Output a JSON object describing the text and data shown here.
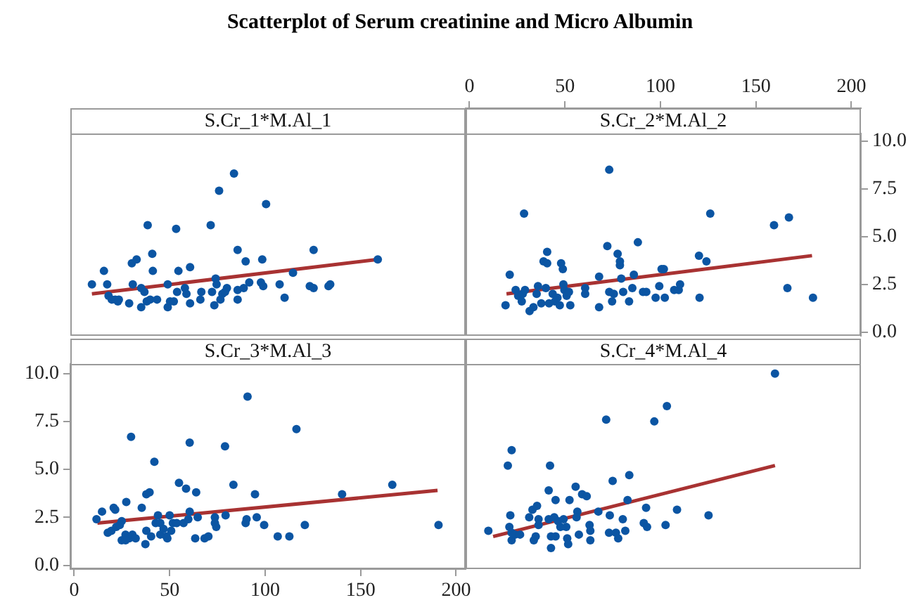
{
  "chart_data": [
    {
      "type": "scatter",
      "title": "Scatterplot of Serum creatinine and Micro Albumin",
      "subtitle": "S.Cr_1*M.Al_1",
      "xlim": [
        -2,
        205
      ],
      "ylim": [
        -0.2,
        10.4
      ],
      "tick_labels": false,
      "series": [
        {
          "color": "#0b55a3",
          "marker": "circle",
          "x": [
            9.3,
            15.6,
            17.3,
            18,
            19.7,
            21.5,
            22.9,
            23.4,
            28.8,
            30.2,
            32.7,
            30.7,
            35.1,
            35.1,
            36.8,
            38.5,
            38,
            39.8,
            40.9,
            41.2,
            43.4,
            49,
            49,
            50.2,
            52.2,
            53.4,
            54.6,
            53.9,
            58,
            58.8,
            60.7,
            60.7,
            66.1,
            66.6,
            71.5,
            72.2,
            73.4,
            74.1,
            74.6,
            75.9,
            76.6,
            77.6,
            79,
            80,
            83.7,
            85.6,
            85.6,
            85.6,
            88.8,
            89.8,
            91.7,
            97.8,
            98.5,
            99,
            100.5,
            107.6,
            110.2,
            114.6,
            123.4,
            125.4,
            125.4,
            133.2,
            134.1,
            159
          ],
          "values": [
            2.5,
            3.2,
            2.5,
            1.9,
            1.7,
            1.7,
            1.6,
            1.7,
            1.5,
            3.6,
            3.8,
            2.5,
            1.3,
            2.3,
            2.1,
            5.6,
            1.6,
            1.7,
            4.1,
            3.2,
            1.7,
            2.5,
            1.3,
            1.6,
            1.6,
            5.4,
            3.2,
            2.1,
            2.3,
            2,
            3.4,
            1.5,
            1.7,
            2.1,
            5.6,
            2.1,
            1.4,
            2.8,
            2.5,
            7.4,
            1.7,
            2,
            2.1,
            2.3,
            8.3,
            4.3,
            1.7,
            2.2,
            2.3,
            3.7,
            2.6,
            2.6,
            3.8,
            2.4,
            6.7,
            2.5,
            1.8,
            3.1,
            2.4,
            4.3,
            2.3,
            2.4,
            2.5,
            3.8
          ]
        },
        {
          "type": "line",
          "color": "#a83232",
          "marker": "none",
          "x": [
            9.3,
            159
          ],
          "values": [
            2.0,
            3.8
          ]
        }
      ]
    },
    {
      "type": "scatter",
      "subtitle": "S.Cr_2*M.Al_2",
      "xlim": [
        -2,
        205
      ],
      "ylim": [
        -0.2,
        10.4
      ],
      "xticks": [
        0,
        50,
        100,
        150,
        200
      ],
      "yticks": [
        {
          "value": 0,
          "label": "0.0"
        },
        {
          "value": 2.5,
          "label": "2.5"
        },
        {
          "value": 5,
          "label": "5.0"
        },
        {
          "value": 7.5,
          "label": "7.5"
        },
        {
          "value": 10,
          "label": "10.0"
        }
      ],
      "series": [
        {
          "color": "#0b55a3",
          "marker": "circle",
          "x": [
            18.9,
            21.1,
            24.2,
            25.5,
            27.9,
            28.6,
            29.1,
            27.4,
            31.5,
            33.5,
            35.2,
            35.9,
            37.6,
            38.8,
            40,
            40.7,
            40.7,
            41.7,
            43.6,
            44.8,
            46.1,
            47.3,
            48,
            48.9,
            49.2,
            49.7,
            50.9,
            52.1,
            52.8,
            60.6,
            60.6,
            67.9,
            67.9,
            72.2,
            73.2,
            73.2,
            74.7,
            75.6,
            77.6,
            78.8,
            78.8,
            79.5,
            80.5,
            83.6,
            85.3,
            86.1,
            88.2,
            90.9,
            92.6,
            97.5,
            99.4,
            100.6,
            101.8,
            102.3,
            107.2,
            109.6,
            110.3,
            120.2,
            120.5,
            124.1,
            126.1,
            159.5,
            166.5,
            167.3,
            179.9
          ],
          "values": [
            1.4,
            3,
            2.2,
            1.9,
            2,
            6.2,
            2.2,
            1.6,
            1.1,
            1.3,
            2,
            2.4,
            1.5,
            3.7,
            2.3,
            4.2,
            3.6,
            1.5,
            2,
            1.6,
            1.8,
            1.4,
            3.6,
            3.3,
            2.5,
            2.2,
            1.9,
            2.1,
            1.4,
            2.3,
            2,
            2.9,
            1.3,
            4.5,
            8.5,
            2.1,
            1.6,
            2,
            4.1,
            3.5,
            3.7,
            2.8,
            2.1,
            1.6,
            2.3,
            3,
            4.7,
            2.1,
            2.1,
            1.8,
            2.4,
            3.3,
            3.3,
            1.8,
            2.2,
            2.2,
            2.5,
            4,
            1.8,
            3.7,
            6.2,
            5.6,
            2.3,
            6,
            1.8
          ]
        },
        {
          "type": "line",
          "color": "#a83232",
          "marker": "none",
          "x": [
            19.4,
            179.4
          ],
          "values": [
            2.0,
            4.0
          ]
        }
      ]
    },
    {
      "type": "scatter",
      "subtitle": "S.Cr_3*M.Al_3",
      "xlim": [
        -2,
        205
      ],
      "ylim": [
        -0.2,
        10.5
      ],
      "xticks": [
        0,
        50,
        100,
        150,
        200
      ],
      "yticks": [
        {
          "value": 0,
          "label": "0.0"
        },
        {
          "value": 2.5,
          "label": "2.5"
        },
        {
          "value": 5,
          "label": "5.0"
        },
        {
          "value": 7.5,
          "label": "7.5"
        },
        {
          "value": 10,
          "label": "10.0"
        }
      ],
      "series": [
        {
          "color": "#0b55a3",
          "marker": "circle",
          "x": [
            11.7,
            14.6,
            20.7,
            21.5,
            29.8,
            27.3,
            24.9,
            17.6,
            19.5,
            22,
            23.9,
            24.9,
            26.9,
            28.8,
            30.5,
            32.2,
            26.9,
            35.4,
            37.8,
            39.5,
            42,
            37.3,
            37.8,
            40.3,
            42.7,
            43.9,
            45.1,
            45.1,
            46.8,
            48.3,
            48.8,
            50,
            50.8,
            51.7,
            53.7,
            54.9,
            57.3,
            58.6,
            59.8,
            60.5,
            60.5,
            63.4,
            63.9,
            64.7,
            68.3,
            70.3,
            73.7,
            73.7,
            74.4,
            79,
            79.3,
            83.4,
            89.8,
            90.3,
            90.8,
            94.7,
            95.6,
            99.5,
            106.6,
            112.7,
            116.4,
            120.8,
            140.3,
            166.6,
            190.8
          ],
          "values": [
            2.4,
            2.8,
            3,
            2.9,
            6.7,
            3.3,
            2.3,
            1.7,
            1.8,
            2,
            2.1,
            1.3,
            1.6,
            1.4,
            1.6,
            1.4,
            1.3,
            3,
            3.7,
            3.8,
            5.4,
            1.1,
            1.8,
            1.5,
            2.2,
            2.6,
            2.2,
            1.6,
            1.9,
            1.5,
            1.4,
            2.6,
            1.8,
            2.2,
            2.2,
            4.3,
            2.2,
            4,
            2.4,
            2.8,
            6.4,
            1.4,
            3.8,
            2.5,
            1.4,
            1.5,
            2.5,
            2.2,
            2,
            6.2,
            2.6,
            4.2,
            2.2,
            2.4,
            8.8,
            3.7,
            2.5,
            2.1,
            1.5,
            1.5,
            7.1,
            2.1,
            3.7,
            4.2,
            2.1
          ]
        },
        {
          "type": "line",
          "color": "#a83232",
          "marker": "none",
          "x": [
            12.2,
            190.3
          ],
          "values": [
            2.2,
            3.9
          ]
        }
      ]
    },
    {
      "type": "scatter",
      "subtitle": "S.Cr_4*M.Al_4",
      "xlim": [
        -2,
        205
      ],
      "ylim": [
        -0.2,
        10.5
      ],
      "tick_labels": false,
      "series": [
        {
          "color": "#0b55a3",
          "marker": "circle",
          "x": [
            9.9,
            20.1,
            22.1,
            21.4,
            20.9,
            22.1,
            22.1,
            24,
            26.5,
            31.3,
            33,
            35.4,
            33.7,
            34.7,
            36.2,
            36.2,
            41.5,
            42.2,
            41.5,
            42.7,
            42.7,
            44.4,
            45.1,
            45.1,
            46.4,
            47.6,
            49.3,
            50.7,
            51.2,
            51.7,
            52.4,
            55.6,
            56.5,
            56.1,
            57.3,
            59,
            61.4,
            62.9,
            63.3,
            63.3,
            67.5,
            71.6,
            73.5,
            73.1,
            75,
            76.7,
            77.9,
            80.3,
            81.6,
            82.8,
            83.7,
            92.5,
            91.3,
            93,
            96.8,
            102.7,
            103.4,
            108.7,
            125.2,
            160
          ],
          "values": [
            1.8,
            5.2,
            6,
            2.6,
            2,
            1.7,
            1.3,
            1.6,
            1.6,
            2.5,
            2.9,
            3.1,
            1.3,
            1.5,
            2.4,
            2.1,
            3.9,
            5.2,
            2.4,
            1.5,
            0.9,
            2.5,
            3.4,
            1.5,
            2.3,
            2,
            2.4,
            2,
            1.4,
            1.1,
            3.4,
            4.1,
            2.8,
            2.5,
            1.6,
            3.7,
            3.6,
            2.1,
            1.3,
            1.8,
            2.8,
            7.6,
            2.6,
            1.7,
            4.4,
            1.7,
            1.4,
            2.4,
            1.8,
            3.4,
            4.7,
            3,
            2.2,
            2,
            7.5,
            2.1,
            8.3,
            2.9,
            2.6,
            10
          ]
        },
        {
          "type": "line",
          "color": "#a83232",
          "marker": "none",
          "x": [
            12.4,
            160
          ],
          "values": [
            1.5,
            5.2
          ]
        }
      ]
    }
  ]
}
